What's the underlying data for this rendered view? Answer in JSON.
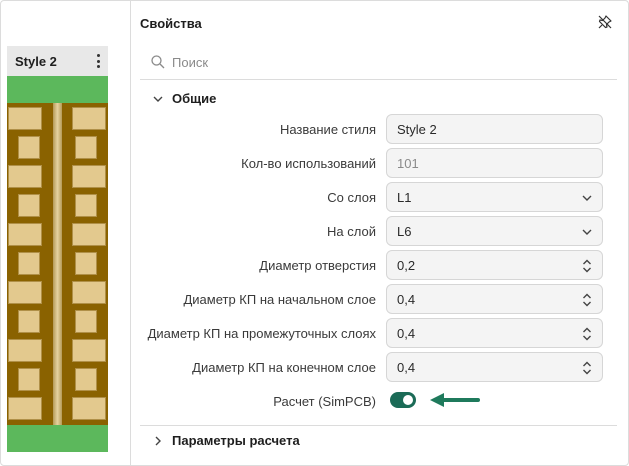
{
  "preview": {
    "style_name": "Style 2"
  },
  "properties": {
    "title": "Свойства",
    "search_placeholder": "Поиск",
    "sections": {
      "general": "Общие",
      "calc_params": "Параметры расчета"
    },
    "fields": [
      {
        "label": "Название стиля",
        "value": "Style 2",
        "kind": "text"
      },
      {
        "label": "Кол-во использований",
        "value": "101",
        "kind": "readonly"
      },
      {
        "label": "Со слоя",
        "value": "L1",
        "kind": "select"
      },
      {
        "label": "На слой",
        "value": "L6",
        "kind": "select"
      },
      {
        "label": "Диаметр отверстия",
        "value": "0,2",
        "kind": "spinner"
      },
      {
        "label": "Диаметр КП на начальном слое",
        "value": "0,4",
        "kind": "spinner"
      },
      {
        "label": "Диаметр КП на промежуточных слоях",
        "value": "0,4",
        "kind": "spinner"
      },
      {
        "label": "Диаметр КП на конечном слое",
        "value": "0,4",
        "kind": "spinner"
      }
    ],
    "simpcb": {
      "label": "Расчет (SimPCB)",
      "enabled": true
    }
  },
  "colors": {
    "accent": "#1b6b57",
    "arrow": "#1f7a5c",
    "mask_green": "#5cb85c",
    "copper_dark": "#8a6200",
    "pad": "#e3c98e"
  }
}
